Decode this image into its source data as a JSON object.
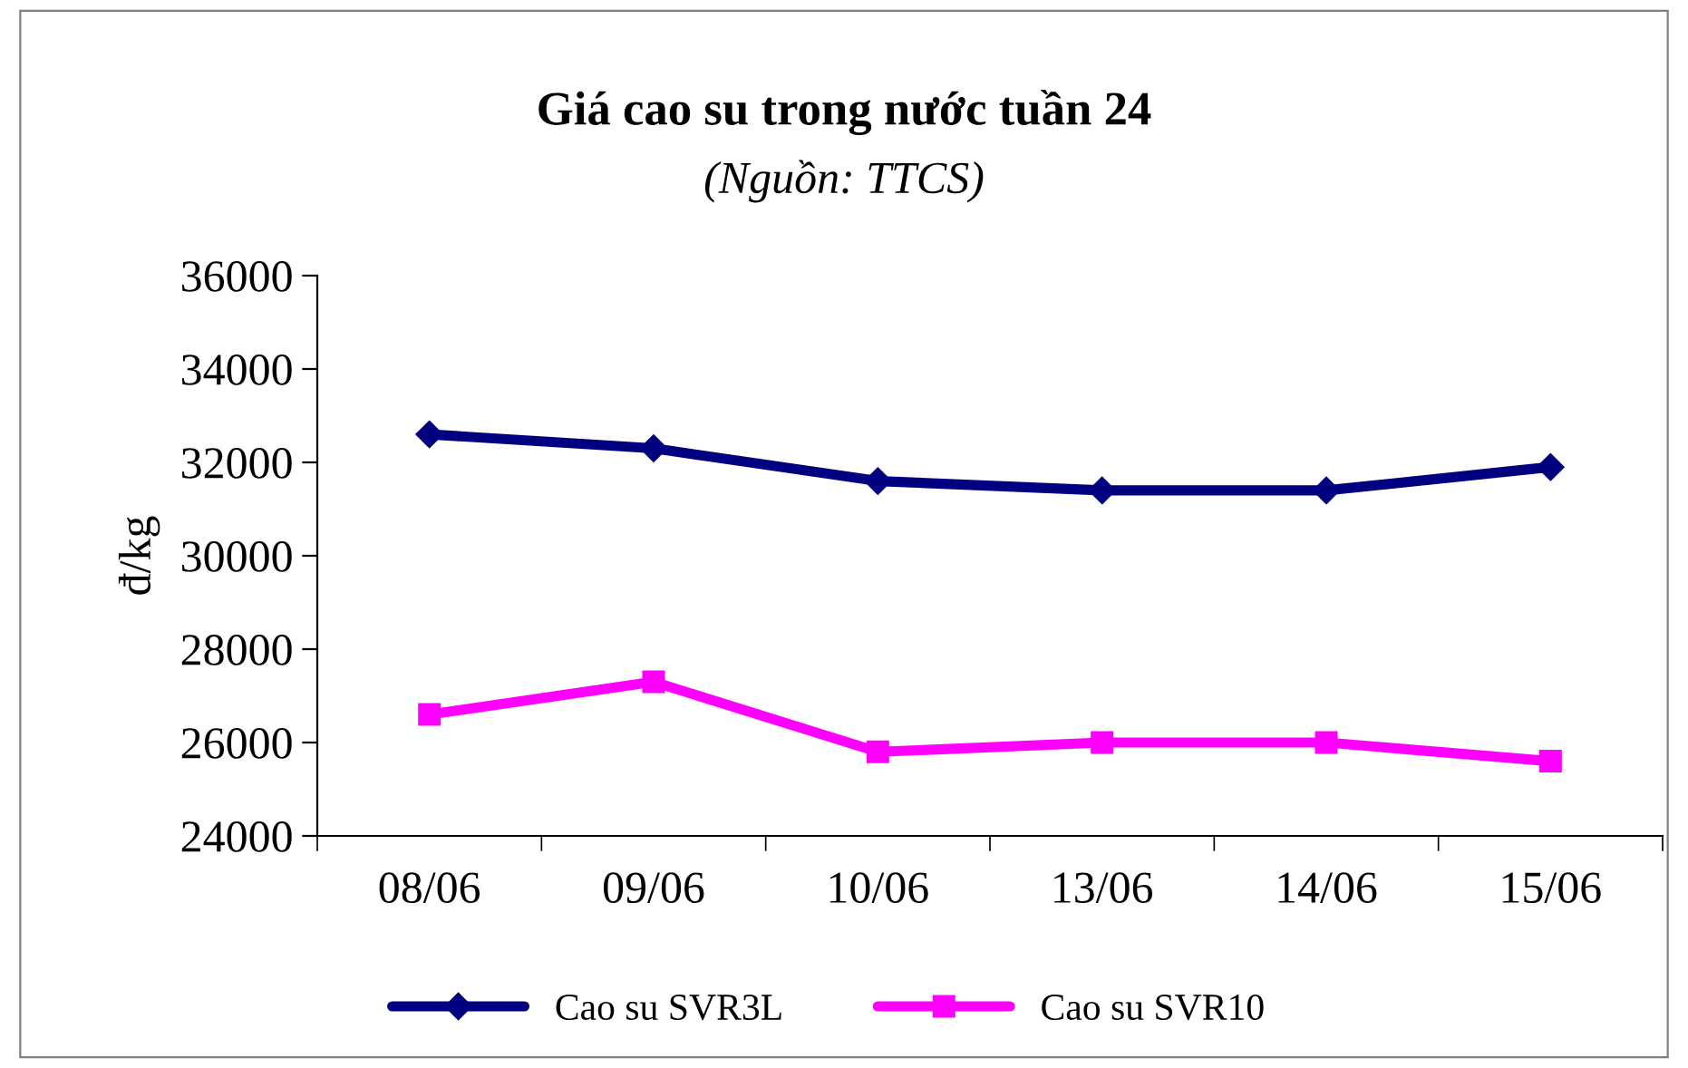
{
  "chart_data": {
    "type": "line",
    "title": "Giá cao su trong nước tuần 24",
    "subtitle": "(Nguồn: TTCS)",
    "ylabel": "đ/kg",
    "categories": [
      "08/06",
      "09/06",
      "10/06",
      "13/06",
      "14/06",
      "15/06"
    ],
    "series": [
      {
        "name": "Cao su SVR3L",
        "color": "#000080",
        "marker": "diamond",
        "values": [
          32600,
          32300,
          31600,
          31400,
          31400,
          31900
        ]
      },
      {
        "name": "Cao su SVR10",
        "color": "#ff00ff",
        "marker": "square",
        "values": [
          26600,
          27300,
          25800,
          26000,
          26000,
          25600
        ]
      }
    ],
    "ylim": [
      24000,
      36000
    ],
    "yticks": [
      24000,
      26000,
      28000,
      30000,
      32000,
      34000,
      36000
    ],
    "grid": false,
    "legend": "bottom",
    "line_style": "solid"
  }
}
